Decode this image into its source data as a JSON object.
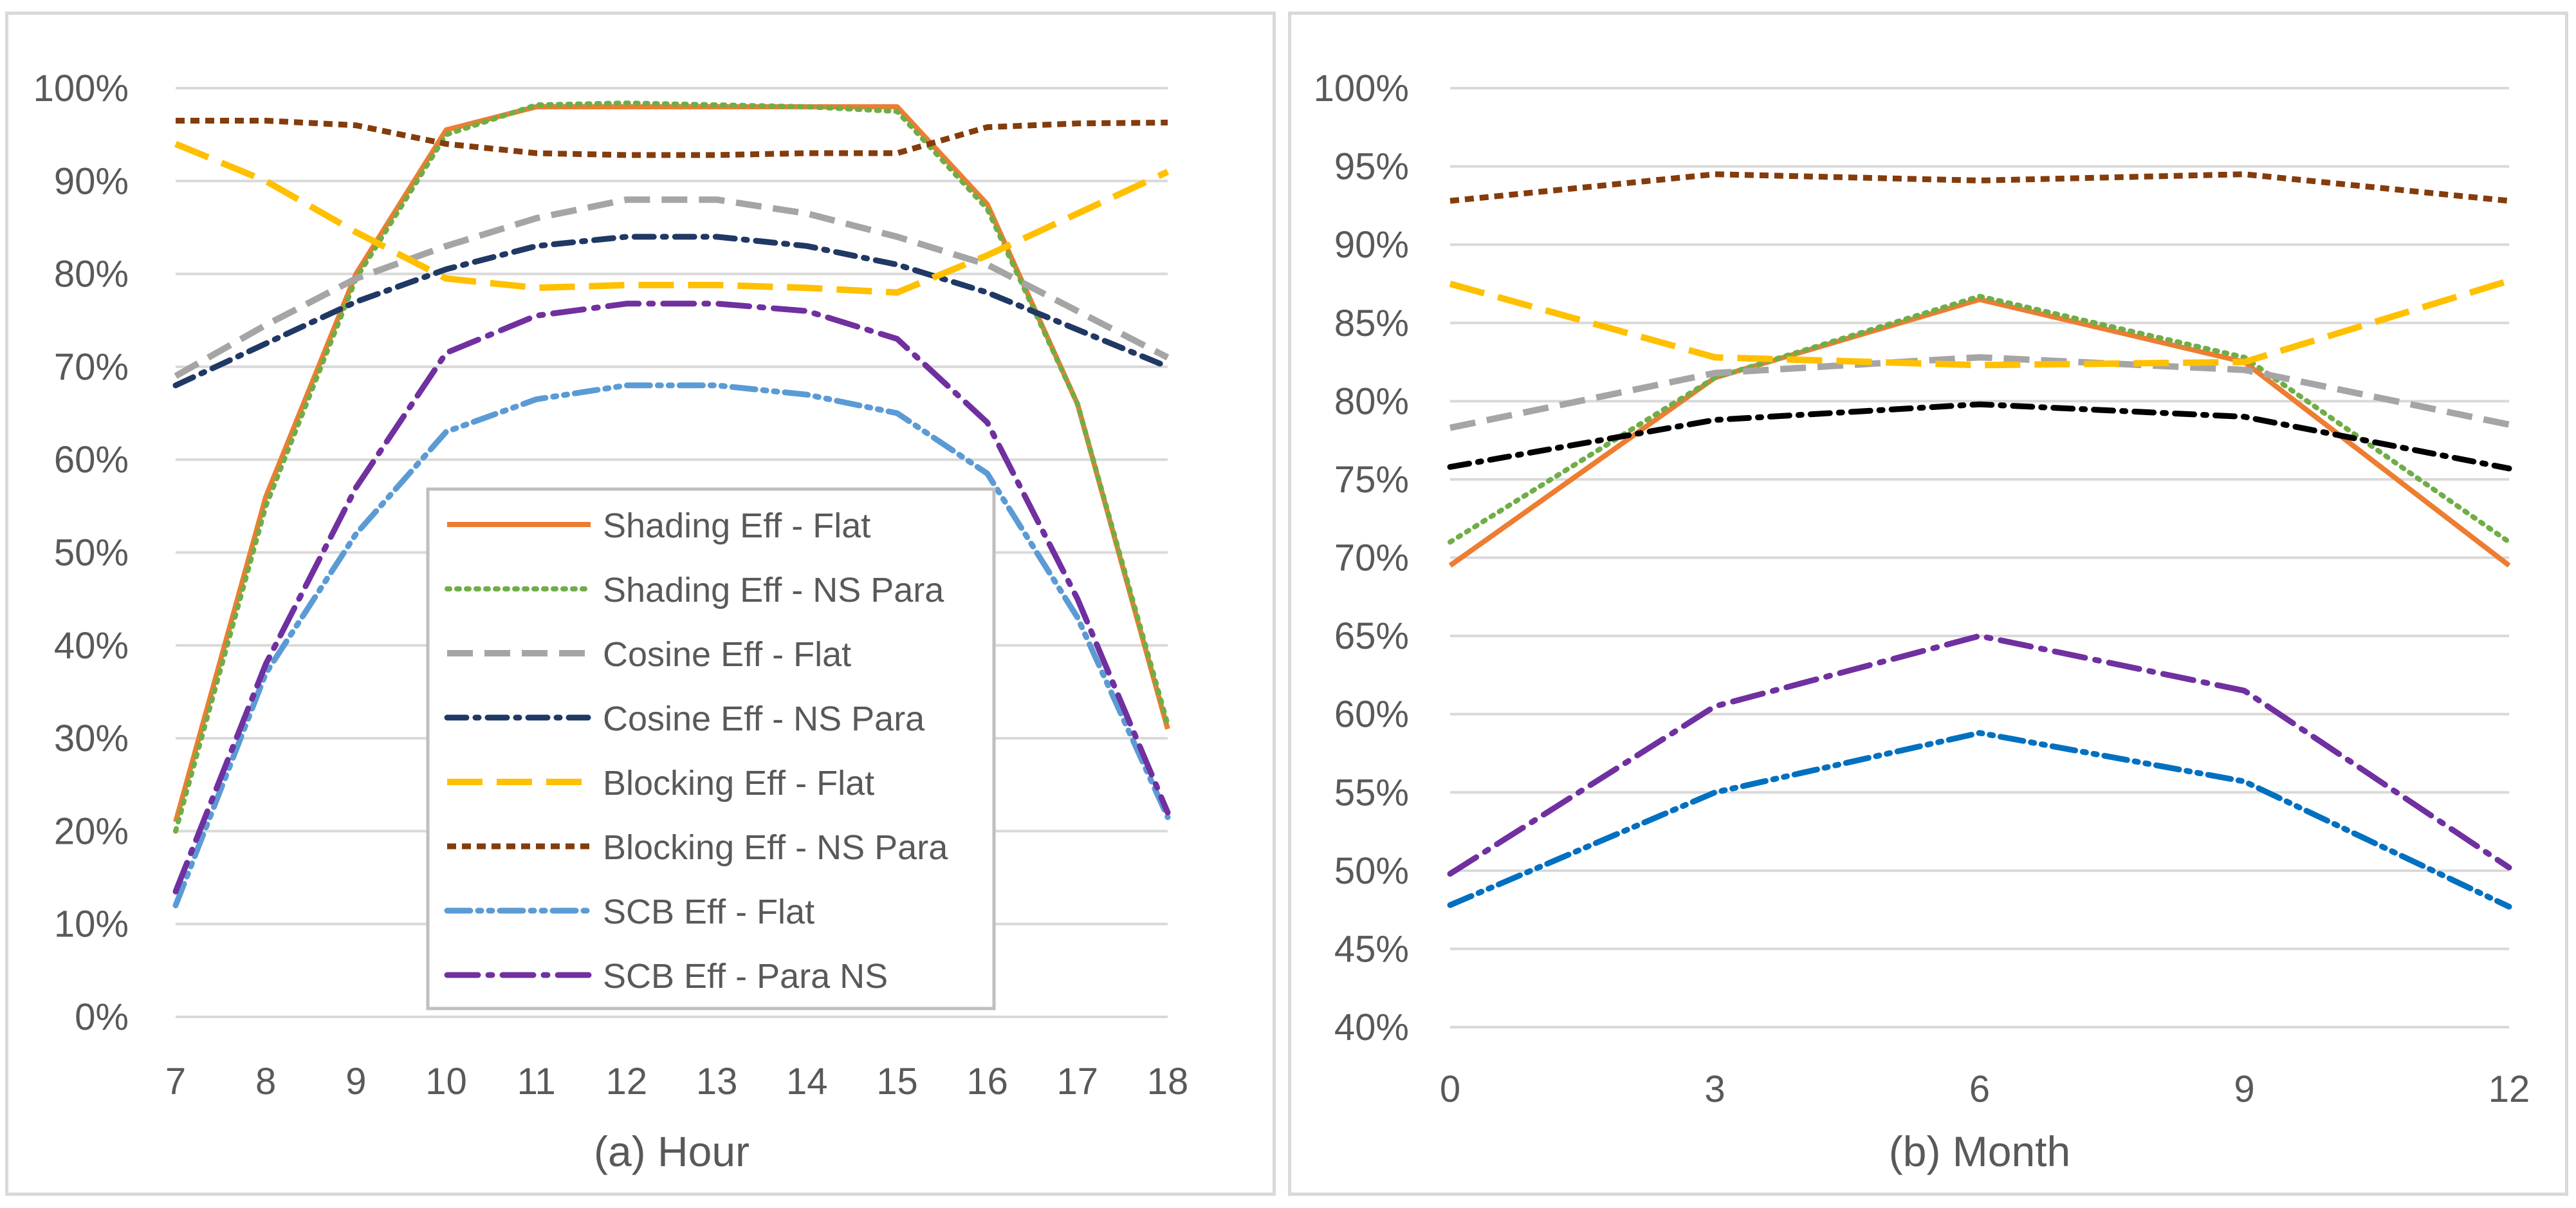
{
  "chart_data": [
    {
      "type": "line",
      "xlabel": "(a) Hour",
      "ylabel": "",
      "x": [
        7,
        8,
        9,
        10,
        11,
        12,
        13,
        14,
        15,
        16,
        17,
        18
      ],
      "xticks": [
        "7",
        "8",
        "9",
        "10",
        "11",
        "12",
        "13",
        "14",
        "15",
        "16",
        "17",
        "18"
      ],
      "ylim": [
        0,
        100
      ],
      "yticks": [
        "0%",
        "10%",
        "20%",
        "30%",
        "40%",
        "50%",
        "60%",
        "70%",
        "80%",
        "90%",
        "100%"
      ],
      "grid": true,
      "legend_position": "center-bottom",
      "series": [
        {
          "name": "Shading Eff - Flat",
          "color": "#ed7d31",
          "style": "solid",
          "values": [
            21,
            56,
            80,
            95.5,
            98,
            98,
            98,
            98,
            98,
            87.5,
            66,
            31
          ]
        },
        {
          "name": "Shading Eff - NS Para",
          "color": "#70ad47",
          "style": "dot",
          "values": [
            20,
            55,
            79.5,
            95,
            98.2,
            98.4,
            98.2,
            98,
            97.5,
            87,
            66,
            31.5
          ]
        },
        {
          "name": "Cosine Eff - Flat",
          "color": "#a5a5a5",
          "style": "dash",
          "values": [
            69,
            74.5,
            79.5,
            83,
            86,
            88,
            88,
            86.5,
            84,
            81,
            76,
            71
          ]
        },
        {
          "name": "Cosine Eff - NS Para",
          "color": "#203864",
          "style": "dashdot",
          "values": [
            68,
            72.5,
            77,
            80.5,
            83,
            84,
            84,
            83,
            81,
            78,
            74,
            70
          ]
        },
        {
          "name": "Blocking Eff - Flat",
          "color": "#ffc000",
          "style": "longdash",
          "values": [
            94,
            90,
            84.5,
            79.5,
            78.5,
            78.8,
            78.8,
            78.5,
            78,
            82,
            86.5,
            91
          ]
        },
        {
          "name": "Blocking Eff - NS Para",
          "color": "#843c0c",
          "style": "sqdot",
          "values": [
            96.5,
            96.5,
            96,
            94,
            93,
            92.8,
            92.8,
            93,
            93,
            95.8,
            96.2,
            96.3
          ]
        },
        {
          "name": "SCB Eff - Flat",
          "color": "#5b9bd5",
          "style": "dashdotdot",
          "values": [
            12,
            37,
            52,
            63,
            66.5,
            68,
            68,
            67,
            65,
            58.5,
            43,
            21.5
          ]
        },
        {
          "name": "SCB Eff - Para NS",
          "color": "#7030a0",
          "style": "longdashdot",
          "values": [
            13.5,
            38,
            57,
            71.5,
            75.5,
            76.8,
            76.8,
            76,
            73,
            64,
            45,
            22
          ]
        }
      ]
    },
    {
      "type": "line",
      "xlabel": "(b) Month",
      "ylabel": "",
      "x": [
        0,
        3,
        6,
        9,
        12
      ],
      "xticks": [
        "0",
        "3",
        "6",
        "9",
        "12"
      ],
      "ylim": [
        40,
        100
      ],
      "yticks": [
        "40%",
        "45%",
        "50%",
        "55%",
        "60%",
        "65%",
        "70%",
        "75%",
        "80%",
        "85%",
        "90%",
        "95%",
        "100%"
      ],
      "grid": true,
      "legend_position": "none",
      "series": [
        {
          "color": "#ed7d31",
          "style": "solid",
          "values": [
            69.5,
            81.5,
            86.5,
            82.5,
            69.5
          ]
        },
        {
          "color": "#70ad47",
          "style": "dot",
          "values": [
            71,
            81.5,
            86.7,
            82.8,
            71
          ]
        },
        {
          "color": "#a5a5a5",
          "style": "dash",
          "values": [
            78.3,
            81.8,
            82.8,
            82,
            78.5
          ]
        },
        {
          "color": "#000000",
          "style": "dashdot",
          "values": [
            75.8,
            78.8,
            79.8,
            79,
            75.7
          ]
        },
        {
          "color": "#ffc000",
          "style": "longdash",
          "values": [
            87.5,
            82.8,
            82.3,
            82.5,
            87.7
          ]
        },
        {
          "color": "#843c0c",
          "style": "sqdot",
          "values": [
            92.8,
            94.5,
            94.1,
            94.5,
            92.8
          ]
        },
        {
          "color": "#0070c0",
          "style": "dashdotdot",
          "values": [
            47.8,
            55,
            58.8,
            55.7,
            47.7
          ]
        },
        {
          "color": "#7030a0",
          "style": "longdashdot",
          "values": [
            49.8,
            60.5,
            65,
            61.5,
            50.2
          ]
        }
      ]
    }
  ]
}
